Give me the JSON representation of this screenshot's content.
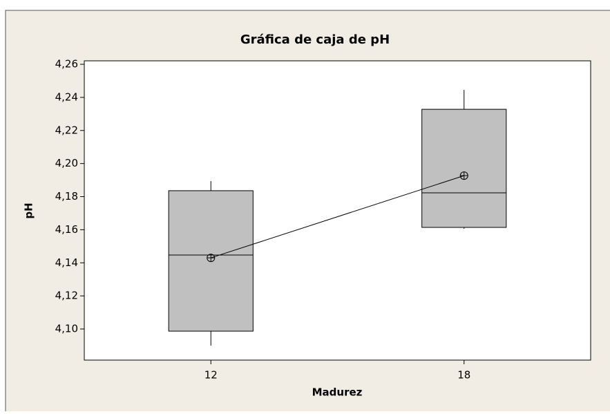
{
  "chart_data": {
    "type": "box",
    "title": "Gráfica de caja de pH",
    "x_label": "Madurez",
    "y_label": "pH",
    "categories": [
      "12",
      "18"
    ],
    "boxes": [
      {
        "min": 4.09,
        "q1": 4.0987,
        "median": 4.1447,
        "q3": 4.1836,
        "max": 4.1894,
        "mean": 4.143
      },
      {
        "min": 4.1606,
        "q1": 4.1614,
        "median": 4.1823,
        "q3": 4.2328,
        "max": 4.2445,
        "mean": 4.1927
      }
    ],
    "box_color": "#c0c0c0",
    "connect_means": true,
    "ylim": [
      4.0812,
      4.2621
    ],
    "yticks": [
      {
        "value": 4.1,
        "label": "4,10"
      },
      {
        "value": 4.12,
        "label": "4,12"
      },
      {
        "value": 4.14,
        "label": "4,14"
      },
      {
        "value": 4.16,
        "label": "4,16"
      },
      {
        "value": 4.18,
        "label": "4,18"
      },
      {
        "value": 4.2,
        "label": "4,20"
      },
      {
        "value": 4.22,
        "label": "4,22"
      },
      {
        "value": 4.24,
        "label": "4,24"
      },
      {
        "value": 4.26,
        "label": "4,26"
      }
    ]
  }
}
